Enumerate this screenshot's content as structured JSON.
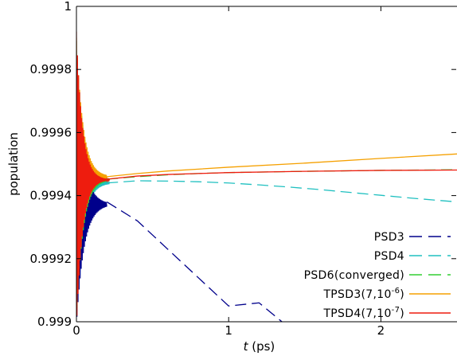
{
  "chart_data": {
    "type": "line",
    "xlabel_var": "t",
    "xlabel_unit": " (ps)",
    "ylabel": "population",
    "xlim": [
      0,
      2.5
    ],
    "ylim": [
      0.999,
      1.0
    ],
    "x_ticks": [
      {
        "value": 0,
        "label": "0"
      },
      {
        "value": 1,
        "label": "1"
      },
      {
        "value": 2,
        "label": "2"
      }
    ],
    "y_ticks": [
      {
        "value": 0.999,
        "label": "0.999"
      },
      {
        "value": 0.9992,
        "label": "0.9992"
      },
      {
        "value": 0.9994,
        "label": "0.9994"
      },
      {
        "value": 0.9996,
        "label": "0.9996"
      },
      {
        "value": 0.9998,
        "label": "0.9998"
      },
      {
        "value": 1.0,
        "label": "1"
      }
    ],
    "legend_position": "bottom-right",
    "series": [
      {
        "name": "PSD3",
        "label_html": "PSD3",
        "color": "#00008b",
        "dash": "long-dash",
        "x": [
          0.2,
          0.4,
          0.6,
          0.8,
          1.0,
          1.2,
          1.35
        ],
        "y": [
          0.99938,
          0.99932,
          0.99923,
          0.99914,
          0.99905,
          0.99906,
          0.999
        ]
      },
      {
        "name": "PSD4",
        "label_html": "PSD4",
        "color": "#20c0c0",
        "dash": "long-dash",
        "x": [
          0.2,
          0.4,
          0.6,
          0.8,
          1.0,
          1.2,
          1.4,
          1.6,
          1.8,
          2.0,
          2.2,
          2.5
        ],
        "y": [
          0.99944,
          0.999447,
          0.999446,
          0.999444,
          0.99944,
          0.999434,
          0.999427,
          0.999419,
          0.99941,
          0.999401,
          0.999392,
          0.99938
        ]
      },
      {
        "name": "PSD6(converged)",
        "label_html": "PSD6(converged)",
        "color": "#32cd32",
        "dash": "long-dash",
        "x": [
          0.2,
          0.4,
          0.6,
          0.8,
          1.0,
          1.5,
          2.0,
          2.5
        ],
        "y": [
          0.999452,
          0.99946,
          0.999466,
          0.99947,
          0.999473,
          0.999477,
          0.99948,
          0.999482
        ]
      },
      {
        "name": "TPSD3(7,10^-6)",
        "label_base": "TPSD3(7,10",
        "label_sup": "-6",
        "label_tail": ")",
        "color": "#f5a000",
        "dash": "solid",
        "x": [
          0.2,
          0.4,
          0.6,
          0.8,
          1.0,
          1.5,
          2.0,
          2.5
        ],
        "y": [
          0.99946,
          0.99947,
          0.999478,
          0.999484,
          0.99949,
          0.999503,
          0.999518,
          0.999532
        ]
      },
      {
        "name": "TPSD4(7,10^-7)",
        "label_base": "TPSD4(7,10",
        "label_sup": "-7",
        "label_tail": ")",
        "color": "#ee1c0e",
        "dash": "solid",
        "x": [
          0.2,
          0.4,
          0.6,
          0.8,
          1.0,
          1.5,
          2.0,
          2.5
        ],
        "y": [
          0.999452,
          0.999462,
          0.999467,
          0.99947,
          0.999473,
          0.999477,
          0.99948,
          0.999481
        ]
      }
    ]
  }
}
